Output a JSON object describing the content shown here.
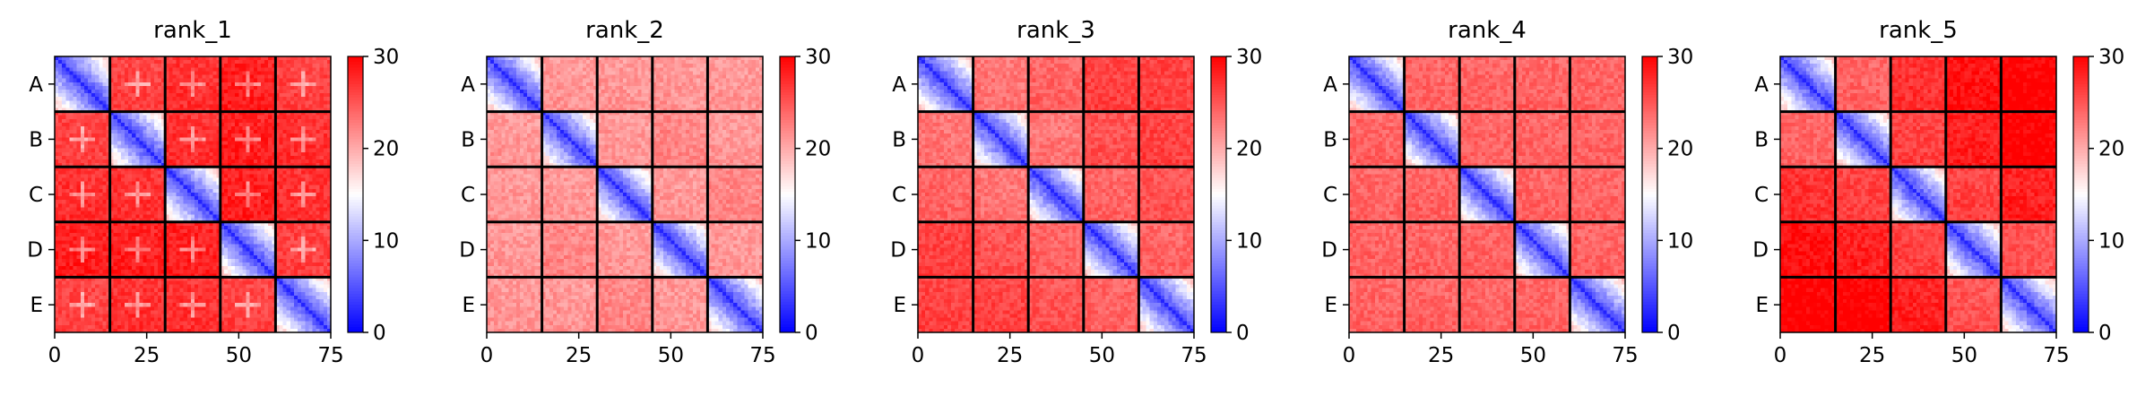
{
  "chart_data": [
    {
      "type": "heatmap",
      "title": "rank_1",
      "xlim": [
        0,
        75
      ],
      "x_ticks": [
        "0",
        "25",
        "50",
        "75"
      ],
      "y_tick_labels": [
        "A",
        "B",
        "C",
        "D",
        "E"
      ],
      "block_size": 15,
      "colorbar": {
        "vmin": 0,
        "vmax": 30,
        "ticks": [
          "0",
          "10",
          "20",
          "30"
        ],
        "colormap": "bwr"
      },
      "diag_level": 4,
      "off_level": 22,
      "block_offsets": [
        [
          0,
          4,
          5,
          6,
          4
        ],
        [
          4,
          0,
          5,
          6,
          5
        ],
        [
          5,
          5,
          0,
          6,
          5
        ],
        [
          6,
          6,
          6,
          0,
          4
        ],
        [
          4,
          5,
          5,
          4,
          0
        ]
      ],
      "spot_pattern": true
    },
    {
      "type": "heatmap",
      "title": "rank_2",
      "xlim": [
        0,
        75
      ],
      "x_ticks": [
        "0",
        "25",
        "50",
        "75"
      ],
      "y_tick_labels": [
        "A",
        "B",
        "C",
        "D",
        "E"
      ],
      "block_size": 15,
      "colorbar": {
        "vmin": 0,
        "vmax": 30,
        "ticks": [
          "0",
          "10",
          "20",
          "30"
        ],
        "colormap": "bwr"
      },
      "diag_level": 4,
      "off_level": 20,
      "block_offsets": [
        [
          0,
          1,
          1,
          1,
          1
        ],
        [
          1,
          0,
          1,
          2,
          1
        ],
        [
          1,
          1,
          0,
          1,
          2
        ],
        [
          1,
          2,
          1,
          0,
          1
        ],
        [
          1,
          1,
          2,
          1,
          0
        ]
      ],
      "spot_pattern": false
    },
    {
      "type": "heatmap",
      "title": "rank_3",
      "xlim": [
        0,
        75
      ],
      "x_ticks": [
        "0",
        "25",
        "50",
        "75"
      ],
      "y_tick_labels": [
        "A",
        "B",
        "C",
        "D",
        "E"
      ],
      "block_size": 15,
      "colorbar": {
        "vmin": 0,
        "vmax": 30,
        "ticks": [
          "0",
          "10",
          "20",
          "30"
        ],
        "colormap": "bwr"
      },
      "diag_level": 4,
      "off_level": 23,
      "block_offsets": [
        [
          0,
          0,
          1,
          3,
          3
        ],
        [
          0,
          0,
          0,
          2,
          3
        ],
        [
          1,
          0,
          0,
          1,
          2
        ],
        [
          3,
          2,
          1,
          0,
          1
        ],
        [
          3,
          3,
          2,
          1,
          0
        ]
      ],
      "spot_pattern": false
    },
    {
      "type": "heatmap",
      "title": "rank_4",
      "xlim": [
        0,
        75
      ],
      "x_ticks": [
        "0",
        "25",
        "50",
        "75"
      ],
      "y_tick_labels": [
        "A",
        "B",
        "C",
        "D",
        "E"
      ],
      "block_size": 15,
      "colorbar": {
        "vmin": 0,
        "vmax": 30,
        "ticks": [
          "0",
          "10",
          "20",
          "30"
        ],
        "colormap": "bwr"
      },
      "diag_level": 4,
      "off_level": 23,
      "block_offsets": [
        [
          0,
          1,
          1,
          1,
          1
        ],
        [
          1,
          0,
          1,
          1,
          1
        ],
        [
          1,
          1,
          0,
          1,
          1
        ],
        [
          1,
          1,
          1,
          0,
          1
        ],
        [
          1,
          1,
          1,
          1,
          0
        ]
      ],
      "spot_pattern": false
    },
    {
      "type": "heatmap",
      "title": "rank_5",
      "xlim": [
        0,
        75
      ],
      "x_ticks": [
        "0",
        "25",
        "50",
        "75"
      ],
      "y_tick_labels": [
        "A",
        "B",
        "C",
        "D",
        "E"
      ],
      "block_size": 15,
      "colorbar": {
        "vmin": 0,
        "vmax": 30,
        "ticks": [
          "0",
          "10",
          "20",
          "30"
        ],
        "colormap": "bwr"
      },
      "diag_level": 4,
      "off_level": 24,
      "block_offsets": [
        [
          0,
          0,
          3,
          5,
          6
        ],
        [
          0,
          0,
          2,
          4,
          6
        ],
        [
          3,
          2,
          0,
          2,
          4
        ],
        [
          5,
          4,
          2,
          0,
          1
        ],
        [
          6,
          6,
          4,
          1,
          0
        ]
      ],
      "spot_pattern": false
    }
  ]
}
